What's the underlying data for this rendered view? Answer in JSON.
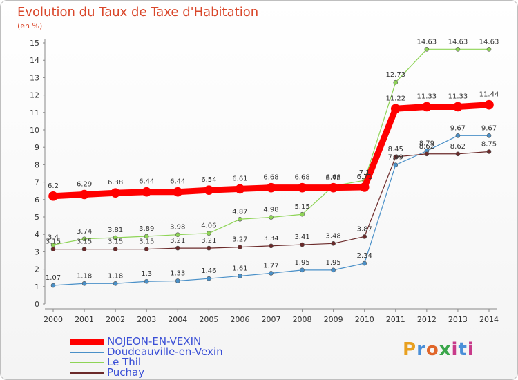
{
  "title": "Evolution du Taux de Taxe d'Habitation",
  "unit_label": "(en %)",
  "logo_text": "Proxiti",
  "chart_data": {
    "type": "line",
    "x": [
      2000,
      2001,
      2002,
      2003,
      2004,
      2005,
      2006,
      2007,
      2008,
      2009,
      2010,
      2011,
      2012,
      2013,
      2014
    ],
    "ylim": [
      0,
      15
    ],
    "yticks": [
      0,
      1,
      2,
      3,
      4,
      5,
      6,
      7,
      8,
      9,
      10,
      11,
      12,
      13,
      14,
      15
    ],
    "grid": false,
    "legend_position": "bottom-left",
    "series": [
      {
        "name": "NOJEON-EN-VEXIN",
        "color": "#ff0000",
        "width": 9,
        "values": [
          6.2,
          6.29,
          6.38,
          6.44,
          6.44,
          6.54,
          6.61,
          6.68,
          6.68,
          6.68,
          6.71,
          11.22,
          11.33,
          11.33,
          11.44
        ],
        "labels": [
          "6.2",
          "6.29",
          "6.38",
          "6.44",
          "6.44",
          "6.54",
          "6.61",
          "6.68",
          "6.68",
          "6.68",
          "6.71",
          "11.22",
          "11.33",
          "11.33",
          "11.44"
        ]
      },
      {
        "name": "Doudeauville-en-Vexin",
        "color": "#4a90c8",
        "width": 1.2,
        "values": [
          1.07,
          1.18,
          1.18,
          1.3,
          1.33,
          1.46,
          1.61,
          1.77,
          1.95,
          1.95,
          2.34,
          7.99,
          8.79,
          9.67,
          9.67
        ],
        "labels": [
          "1.07",
          "1.18",
          "1.18",
          "1.3",
          "1.33",
          "1.46",
          "1.61",
          "1.77",
          "1.95",
          "1.95",
          "2.34",
          "7.99",
          "8.79",
          "9.67",
          "9.67"
        ]
      },
      {
        "name": "Le Thil",
        "color": "#8ed456",
        "width": 1.2,
        "values": [
          3.4,
          3.74,
          3.81,
          3.89,
          3.98,
          4.06,
          4.87,
          4.98,
          5.15,
          6.78,
          7.1,
          12.73,
          14.63,
          14.63,
          14.63
        ],
        "labels": [
          "3.4",
          "3.74",
          "3.81",
          "3.89",
          "3.98",
          "4.06",
          "4.87",
          "4.98",
          "5.15",
          "6.78",
          "7.1",
          "12.73",
          "14.63",
          "14.63",
          "14.63"
        ]
      },
      {
        "name": "Puchay",
        "color": "#6b2a2a",
        "width": 1.2,
        "values": [
          3.15,
          3.15,
          3.15,
          3.15,
          3.21,
          3.21,
          3.27,
          3.34,
          3.41,
          3.48,
          3.87,
          8.45,
          8.62,
          8.62,
          8.75
        ],
        "labels": [
          "3.15",
          "3.15",
          "3.15",
          "3.15",
          "3.21",
          "3.21",
          "3.27",
          "3.34",
          "3.41",
          "3.48",
          "3.87",
          "8.45",
          "8.62",
          "8.62",
          "8.75"
        ]
      }
    ]
  }
}
